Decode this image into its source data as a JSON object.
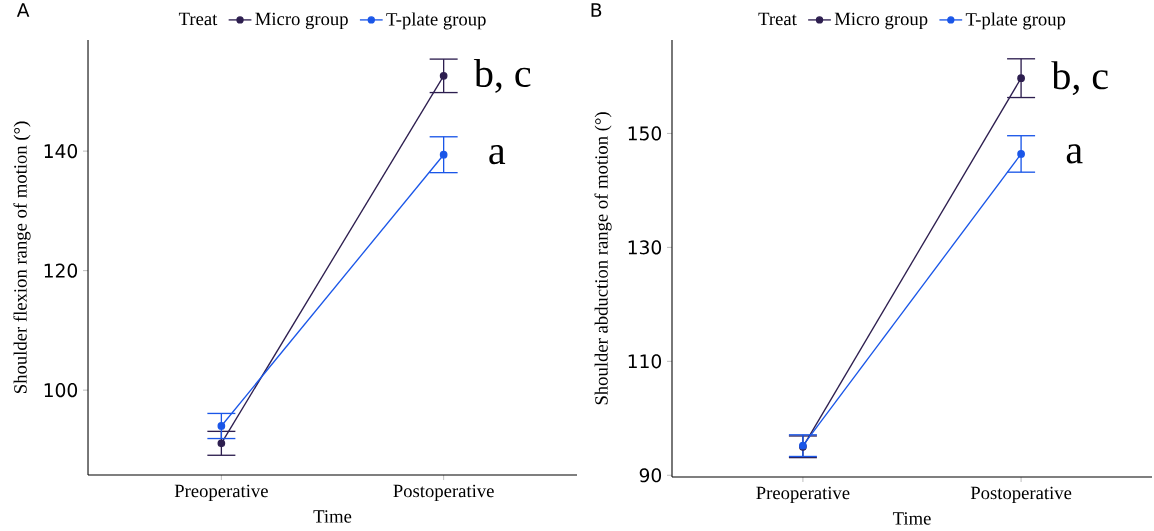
{
  "chart_data": [
    {
      "type": "line",
      "title": "A",
      "xlabel": "Time",
      "ylabel": "Shoulder flexion range of motion (°)",
      "legend_title": "Treat",
      "legend": "top",
      "marker": "circle",
      "categories": [
        "Preoperative",
        "Postoperative"
      ],
      "series": [
        {
          "name": "Micro group",
          "color": "#2d1e4f",
          "values": [
            91.1,
            152.6
          ],
          "errors": [
            2.0,
            2.8
          ]
        },
        {
          "name": "T-plate group",
          "color": "#1a56e8",
          "values": [
            94.0,
            139.4
          ],
          "errors": [
            2.1,
            3.0
          ]
        }
      ],
      "ylim": [
        85.8,
        158.6
      ],
      "yticks": [
        100,
        120,
        140
      ],
      "annotations": [
        {
          "text": "b, c",
          "x": "Postoperative",
          "y": 152.6
        },
        {
          "text": "a",
          "x": "Postoperative",
          "y": 139.4
        }
      ]
    },
    {
      "type": "line",
      "title": "B",
      "xlabel": "Time",
      "ylabel": "Shoulder abduction range of motion (°)",
      "legend_title": "Treat",
      "legend": "top",
      "marker": "circle",
      "categories": [
        "Preoperative",
        "Postoperative"
      ],
      "series": [
        {
          "name": "Micro group",
          "color": "#2d1e4f",
          "values": [
            95.0,
            159.7
          ],
          "errors": [
            1.9,
            3.4
          ]
        },
        {
          "name": "T-plate group",
          "color": "#1a56e8",
          "values": [
            95.2,
            146.4
          ],
          "errors": [
            1.9,
            3.2
          ]
        }
      ],
      "ylim": [
        89.7,
        166.4
      ],
      "yticks": [
        90,
        110,
        130,
        150
      ],
      "annotations": [
        {
          "text": "b, c",
          "x": "Postoperative",
          "y": 159.7
        },
        {
          "text": "a",
          "x": "Postoperative",
          "y": 146.4
        }
      ]
    }
  ]
}
